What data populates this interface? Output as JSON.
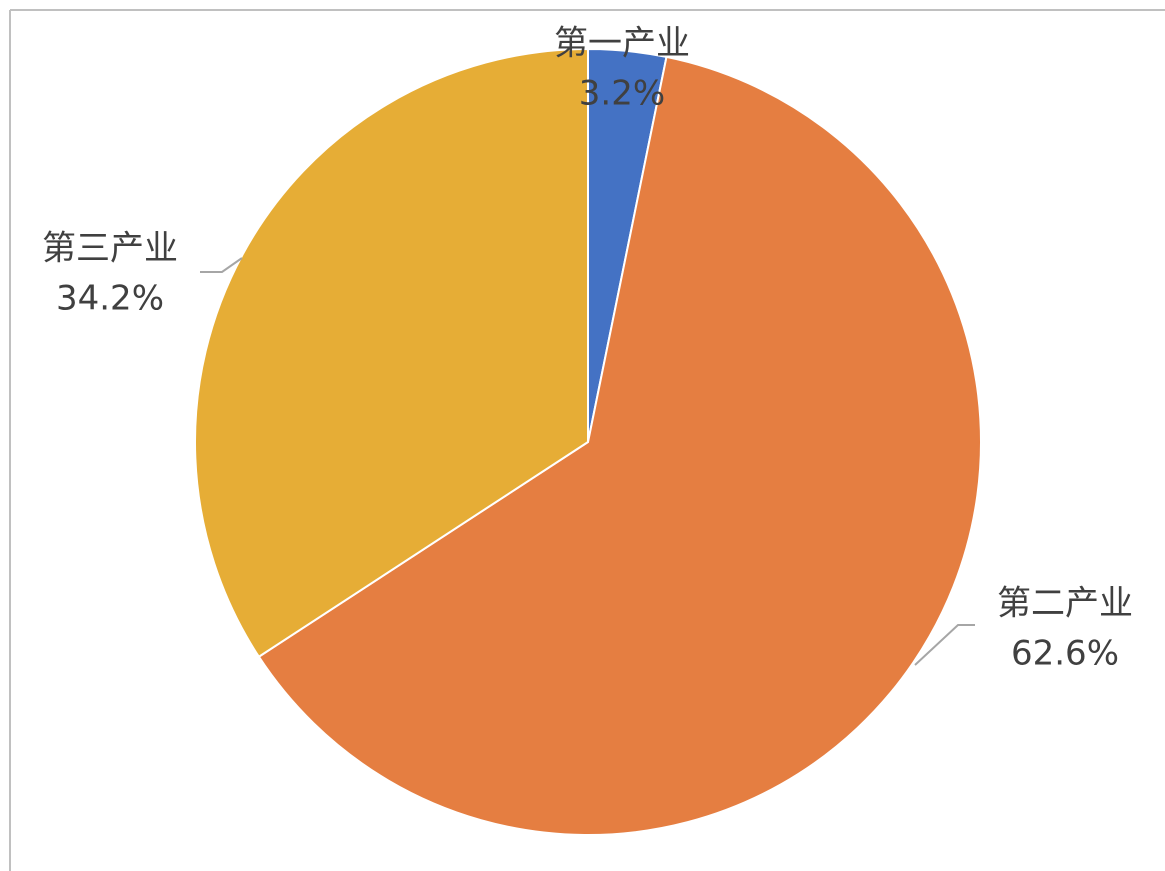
{
  "chart_data": {
    "type": "pie",
    "categories": [
      "第一产业",
      "第二产业",
      "第三产业"
    ],
    "values": [
      3.2,
      62.6,
      34.2
    ],
    "value_labels": [
      "3.2%",
      "62.6%",
      "34.2%"
    ],
    "colors": [
      "#4472c4",
      "#e57e41",
      "#e6ad36"
    ]
  }
}
